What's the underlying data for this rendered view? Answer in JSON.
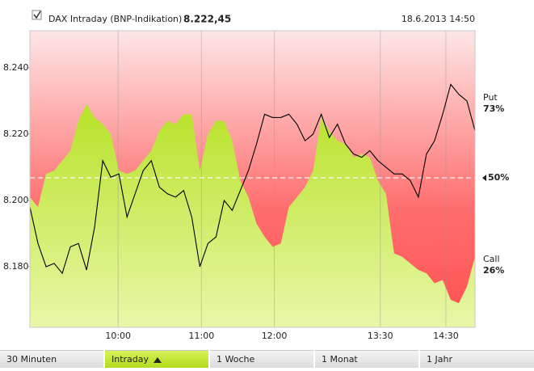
{
  "header": {
    "title": "DAX Intraday (BNP-Indikation)",
    "last": "8.222,45",
    "timestamp": "18.6.2013 14:50"
  },
  "tabs": [
    "30 Minuten",
    "Intraday",
    "1 Woche",
    "1 Monat",
    "1 Jahr"
  ],
  "active_tab": 1,
  "chart_data": {
    "type": "line",
    "background_color": "#ff5a5a",
    "series": [
      {
        "name": "DAX Intraday (BNP-Indikation)",
        "color": "#000000",
        "values": [
          8.198,
          8.187,
          8.18,
          8.181,
          8.178,
          8.186,
          8.187,
          8.179,
          8.192,
          8.212,
          8.207,
          8.208,
          8.195,
          8.202,
          8.209,
          8.212,
          8.204,
          8.202,
          8.201,
          8.203,
          8.195,
          8.18,
          8.187,
          8.189,
          8.2,
          8.197,
          8.203,
          8.209,
          8.217,
          8.226,
          8.225,
          8.225,
          8.226,
          8.223,
          8.218,
          8.22,
          8.226,
          8.219,
          8.223,
          8.217,
          8.214,
          8.213,
          8.215,
          8.212,
          8.21,
          8.208,
          8.208,
          8.206,
          8.201,
          8.214,
          8.218,
          8.226,
          8.235,
          8.232,
          8.23,
          8.221
        ]
      },
      {
        "color": "#b5e31c",
        "fill": "area",
        "values": [
          8.201,
          8.198,
          8.208,
          8.209,
          8.212,
          8.215,
          8.224,
          8.229,
          8.225,
          8.223,
          8.22,
          8.209,
          8.208,
          8.209,
          8.212,
          8.215,
          8.221,
          8.224,
          8.223,
          8.226,
          8.226,
          8.209,
          8.22,
          8.224,
          8.224,
          8.218,
          8.206,
          8.201,
          8.193,
          8.189,
          8.186,
          8.187,
          8.198,
          8.201,
          8.204,
          8.209,
          8.225,
          8.221,
          8.218,
          8.217,
          8.213,
          8.214,
          8.213,
          8.206,
          8.202,
          8.184,
          8.183,
          8.181,
          8.179,
          8.178,
          8.175,
          8.176,
          8.17,
          8.169,
          8.174,
          8.183
        ]
      }
    ],
    "xlim": [
      0,
      55
    ],
    "xticks": [
      {
        "value": 10.9,
        "label": "10:00"
      },
      {
        "value": 21.2,
        "label": "11:00"
      },
      {
        "value": 30.2,
        "label": "12:00"
      },
      {
        "value": 43.3,
        "label": "13:30"
      },
      {
        "value": 51.4,
        "label": "14:30"
      }
    ],
    "ylim": [
      8.1617,
      8.2512
    ],
    "yticks": [
      {
        "value": 8.18,
        "label": "8.180"
      },
      {
        "value": 8.2,
        "label": "8.200"
      },
      {
        "value": 8.22,
        "label": "8.220"
      },
      {
        "value": 8.24,
        "label": "8.240"
      }
    ],
    "midline_value": 8.2068,
    "midline_label": "50%",
    "put_label": "Put",
    "put_pct": "73%",
    "call_label": "Call",
    "call_pct": "26%"
  }
}
